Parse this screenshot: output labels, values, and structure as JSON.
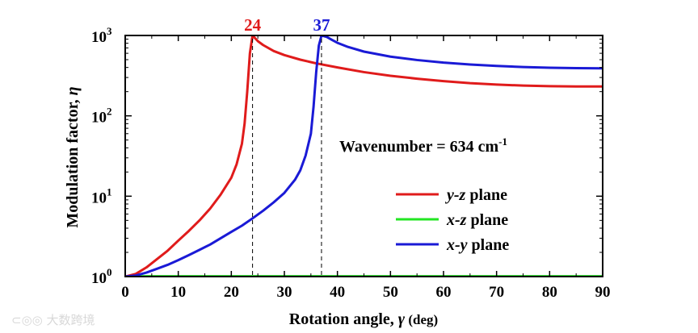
{
  "chart_data": {
    "type": "line",
    "xlabel_prefix": "Rotation angle, ",
    "xlabel_symbol": "γ",
    "xlabel_suffix": " (deg)",
    "ylabel_prefix": "Modulation factor, ",
    "ylabel_symbol": "η",
    "xlim": [
      0,
      90
    ],
    "ylim_log10": [
      0,
      3
    ],
    "yscale": "log",
    "x_ticks": [
      0,
      10,
      20,
      30,
      40,
      50,
      60,
      70,
      80,
      90
    ],
    "y_ticks": [
      {
        "base": "10",
        "exp": "0",
        "value": 1
      },
      {
        "base": "10",
        "exp": "1",
        "value": 10
      },
      {
        "base": "10",
        "exp": "2",
        "value": 100
      },
      {
        "base": "10",
        "exp": "3",
        "value": 1000
      }
    ],
    "annotation_text": "Wavenumber = 634 cm",
    "annotation_sup": "-1",
    "peak_markers": [
      {
        "label": "24",
        "x": 24,
        "color": "#e01b1b"
      },
      {
        "label": "37",
        "x": 37,
        "color": "#1a1ad6"
      }
    ],
    "series": [
      {
        "name_italic": "y-z",
        "name_rest": " plane",
        "color": "#e01b1b",
        "x": [
          0,
          2,
          4,
          6,
          8,
          10,
          12,
          14,
          16,
          18,
          20,
          21,
          22,
          22.5,
          23,
          23.5,
          24,
          25,
          26,
          28,
          30,
          33,
          36,
          40,
          45,
          50,
          55,
          60,
          65,
          70,
          75,
          80,
          85,
          90
        ],
        "y": [
          1,
          1.08,
          1.3,
          1.65,
          2.1,
          2.8,
          3.7,
          5.0,
          7.0,
          10.5,
          17,
          25,
          45,
          80,
          200,
          600,
          1000,
          850,
          760,
          640,
          570,
          500,
          450,
          400,
          350,
          315,
          290,
          270,
          255,
          245,
          238,
          234,
          232,
          232
        ]
      },
      {
        "name_italic": "x-z",
        "name_rest": " plane",
        "color": "#22e622",
        "x": [
          0,
          90
        ],
        "y": [
          1.01,
          1.01
        ]
      },
      {
        "name_italic": "x-y",
        "name_rest": " plane",
        "color": "#1a1ad6",
        "x": [
          0,
          2,
          4,
          6,
          8,
          10,
          12,
          14,
          16,
          18,
          20,
          22,
          24,
          26,
          28,
          30,
          32,
          33,
          34,
          35,
          35.5,
          36,
          36.5,
          37,
          38,
          39,
          40,
          42,
          45,
          50,
          55,
          60,
          65,
          70,
          75,
          80,
          85,
          90
        ],
        "y": [
          1,
          1.03,
          1.12,
          1.25,
          1.4,
          1.6,
          1.85,
          2.15,
          2.5,
          3.0,
          3.6,
          4.3,
          5.3,
          6.6,
          8.4,
          11,
          16,
          21,
          32,
          60,
          130,
          350,
          750,
          1000,
          960,
          880,
          810,
          720,
          630,
          545,
          495,
          460,
          435,
          418,
          405,
          397,
          392,
          390
        ]
      }
    ]
  },
  "watermark_text": "大数跨境"
}
